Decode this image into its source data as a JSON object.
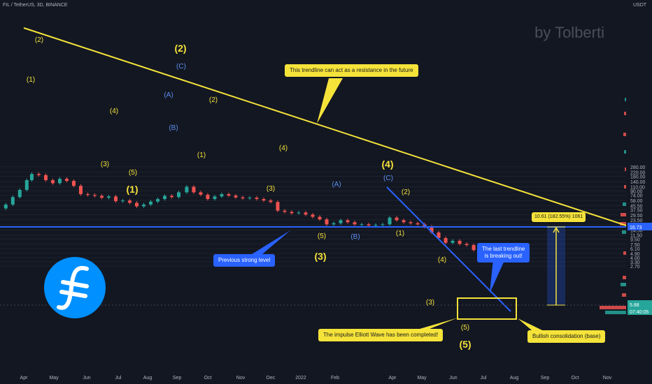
{
  "header": {
    "symbol_line": "FIL / TetherUS, 3D, BINANCE",
    "currency": "USDT"
  },
  "watermark": "by Tolberti",
  "colors": {
    "background": "#131722",
    "up": "#26a69a",
    "down": "#ef5350",
    "trendline": "#f5e33a",
    "level": "#2962ff",
    "wave_yellow": "#f5e33a",
    "wave_blue": "#5b8def",
    "logo": "#0090ff"
  },
  "chart_data": {
    "type": "candlestick",
    "y_scale": "log",
    "y_ticks": [
      "280.00",
      "220.00",
      "180.00",
      "140.00",
      "110.00",
      "90.00",
      "74.00",
      "58.00",
      "45.50",
      "37.50",
      "29.50",
      "23.50",
      "18.50",
      "14.50",
      "11.50",
      "9.50",
      "7.50",
      "6.10",
      "4.90",
      "4.00",
      "3.30",
      "2.70"
    ],
    "x_ticks": [
      "Apr",
      "May",
      "Jun",
      "Jul",
      "Aug",
      "Sep",
      "Oct",
      "Nov",
      "Dec",
      "2022",
      "Feb",
      "Apr",
      "May",
      "Jun",
      "Jul",
      "Aug",
      "Sep",
      "Oct",
      "Nov"
    ],
    "price_labels": {
      "level": "16.73",
      "last": "5.88",
      "countdown": "07:40:05"
    },
    "close_series": [
      {
        "x": "2021-03-01",
        "y": 40
      },
      {
        "x": "2021-03-08",
        "y": 48
      },
      {
        "x": "2021-03-15",
        "y": 68
      },
      {
        "x": "2021-03-22",
        "y": 95
      },
      {
        "x": "2021-03-29",
        "y": 150
      },
      {
        "x": "2021-04-03",
        "y": 200
      },
      {
        "x": "2021-04-10",
        "y": 190
      },
      {
        "x": "2021-04-17",
        "y": 150
      },
      {
        "x": "2021-04-24",
        "y": 130
      },
      {
        "x": "2021-05-01",
        "y": 160
      },
      {
        "x": "2021-05-08",
        "y": 145
      },
      {
        "x": "2021-05-15",
        "y": 115
      },
      {
        "x": "2021-05-22",
        "y": 78
      },
      {
        "x": "2021-05-29",
        "y": 75
      },
      {
        "x": "2021-06-05",
        "y": 72
      },
      {
        "x": "2021-06-12",
        "y": 66
      },
      {
        "x": "2021-06-19",
        "y": 70
      },
      {
        "x": "2021-06-26",
        "y": 56
      },
      {
        "x": "2021-07-03",
        "y": 58
      },
      {
        "x": "2021-07-10",
        "y": 52
      },
      {
        "x": "2021-07-17",
        "y": 44
      },
      {
        "x": "2021-07-24",
        "y": 48
      },
      {
        "x": "2021-07-31",
        "y": 55
      },
      {
        "x": "2021-08-07",
        "y": 62
      },
      {
        "x": "2021-08-14",
        "y": 72
      },
      {
        "x": "2021-08-21",
        "y": 68
      },
      {
        "x": "2021-08-28",
        "y": 85
      },
      {
        "x": "2021-09-05",
        "y": 110
      },
      {
        "x": "2021-09-12",
        "y": 85
      },
      {
        "x": "2021-09-19",
        "y": 76
      },
      {
        "x": "2021-09-26",
        "y": 62
      },
      {
        "x": "2021-10-03",
        "y": 70
      },
      {
        "x": "2021-10-10",
        "y": 78
      },
      {
        "x": "2021-10-17",
        "y": 73
      },
      {
        "x": "2021-10-24",
        "y": 67
      },
      {
        "x": "2021-10-31",
        "y": 64
      },
      {
        "x": "2021-11-07",
        "y": 66
      },
      {
        "x": "2021-11-14",
        "y": 62
      },
      {
        "x": "2021-11-21",
        "y": 58
      },
      {
        "x": "2021-11-28",
        "y": 54
      },
      {
        "x": "2021-12-05",
        "y": 36
      },
      {
        "x": "2021-12-12",
        "y": 34
      },
      {
        "x": "2021-12-19",
        "y": 32
      },
      {
        "x": "2021-12-26",
        "y": 33
      },
      {
        "x": "2022-01-02",
        "y": 30
      },
      {
        "x": "2022-01-09",
        "y": 27
      },
      {
        "x": "2022-01-16",
        "y": 24
      },
      {
        "x": "2022-01-23",
        "y": 19
      },
      {
        "x": "2022-01-30",
        "y": 20
      },
      {
        "x": "2022-02-06",
        "y": 23
      },
      {
        "x": "2022-02-13",
        "y": 21
      },
      {
        "x": "2022-02-20",
        "y": 19
      },
      {
        "x": "2022-02-27",
        "y": 19
      },
      {
        "x": "2022-03-06",
        "y": 18
      },
      {
        "x": "2022-03-13",
        "y": 18.5
      },
      {
        "x": "2022-03-20",
        "y": 19
      },
      {
        "x": "2022-03-27",
        "y": 26
      },
      {
        "x": "2022-04-03",
        "y": 23
      },
      {
        "x": "2022-04-10",
        "y": 21
      },
      {
        "x": "2022-04-17",
        "y": 20
      },
      {
        "x": "2022-04-24",
        "y": 19
      },
      {
        "x": "2022-05-01",
        "y": 17
      },
      {
        "x": "2022-05-08",
        "y": 13
      },
      {
        "x": "2022-05-15",
        "y": 10
      },
      {
        "x": "2022-05-22",
        "y": 8
      },
      {
        "x": "2022-05-29",
        "y": 8.8
      },
      {
        "x": "2022-06-05",
        "y": 7.6
      },
      {
        "x": "2022-06-12",
        "y": 7.2
      },
      {
        "x": "2022-06-19",
        "y": 5.7
      },
      {
        "x": "2022-06-26",
        "y": 5.6
      },
      {
        "x": "2022-07-03",
        "y": 5.8
      },
      {
        "x": "2022-07-10",
        "y": 5.6
      },
      {
        "x": "2022-07-17",
        "y": 5.7
      },
      {
        "x": "2022-07-24",
        "y": 5.88
      }
    ]
  },
  "annotations": {
    "callout_resistance": "This trendline can act as a resistance in the future",
    "callout_level": "Previous strong level",
    "callout_breakout_1": "The last trendline",
    "callout_breakout_2": "is breaking out!",
    "callout_impulse": "The impulse Elliott Wave has been completed!",
    "callout_consolidation": "Bullish consolidation (base)",
    "measure": "10.61 (182.55%) 1061",
    "waves": [
      {
        "text": "(1)",
        "color": "yellow",
        "big": false
      },
      {
        "text": "(2)",
        "color": "yellow",
        "big": false
      },
      {
        "text": "(3)",
        "color": "yellow",
        "big": false
      },
      {
        "text": "(4)",
        "color": "yellow",
        "big": false
      },
      {
        "text": "(5)",
        "color": "yellow",
        "big": false
      },
      {
        "text": "(1)",
        "color": "yellow",
        "big": true
      },
      {
        "text": "(A)",
        "color": "blue",
        "big": false
      },
      {
        "text": "(B)",
        "color": "blue",
        "big": false
      },
      {
        "text": "(C)",
        "color": "blue",
        "big": false
      },
      {
        "text": "(2)",
        "color": "yellow",
        "big": true
      },
      {
        "text": "(1)",
        "color": "yellow",
        "big": false
      },
      {
        "text": "(2)",
        "color": "yellow",
        "big": false
      },
      {
        "text": "(3)",
        "color": "yellow",
        "big": false
      },
      {
        "text": "(4)",
        "color": "yellow",
        "big": false
      },
      {
        "text": "(5)",
        "color": "yellow",
        "big": false
      },
      {
        "text": "(3)",
        "color": "yellow",
        "big": true
      },
      {
        "text": "(A)",
        "color": "blue",
        "big": false
      },
      {
        "text": "(B)",
        "color": "blue",
        "big": false
      },
      {
        "text": "(C)",
        "color": "blue",
        "big": false
      },
      {
        "text": "(4)",
        "color": "yellow",
        "big": true
      },
      {
        "text": "(1)",
        "color": "yellow",
        "big": false
      },
      {
        "text": "(2)",
        "color": "yellow",
        "big": false
      },
      {
        "text": "(3)",
        "color": "yellow",
        "big": false
      },
      {
        "text": "(4)",
        "color": "yellow",
        "big": false
      },
      {
        "text": "(5)",
        "color": "yellow",
        "big": false
      },
      {
        "text": "(5)",
        "color": "yellow",
        "big": true
      }
    ]
  }
}
